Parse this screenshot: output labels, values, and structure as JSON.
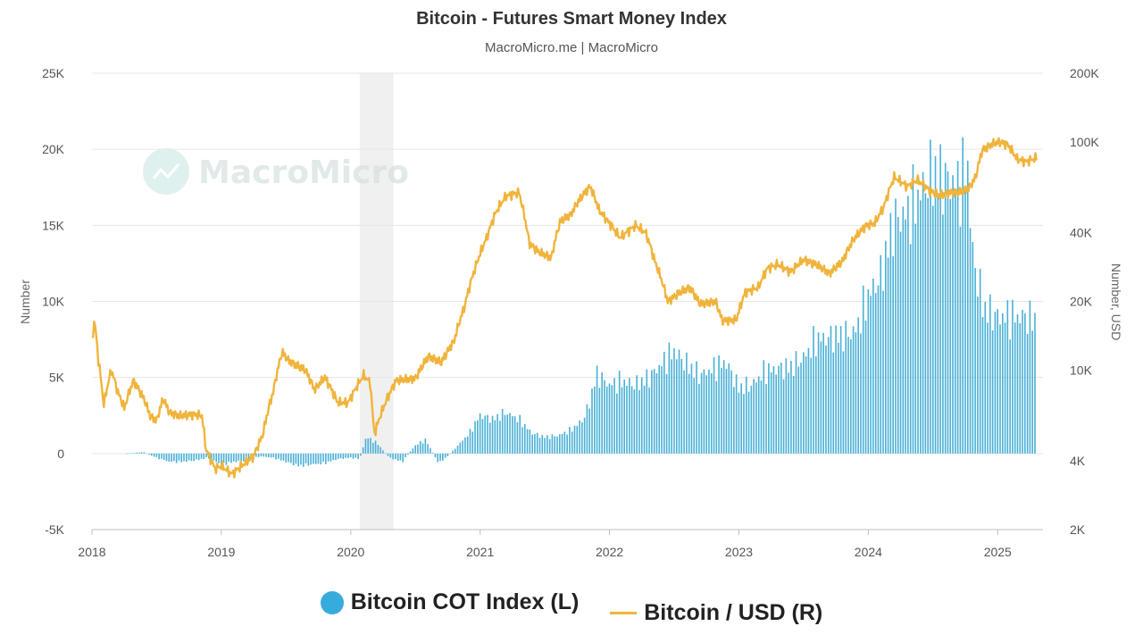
{
  "chart_data": {
    "type": "bar+line",
    "title": "Bitcoin - Futures Smart Money Index",
    "subtitle": "MacroMicro.me | MacroMicro",
    "watermark": "MacroMicro",
    "y_left": {
      "label": "Number",
      "ticks": [
        "-5K",
        "0",
        "5K",
        "10K",
        "15K",
        "20K",
        "25K"
      ],
      "min": -5000,
      "max": 25000
    },
    "y_right": {
      "label": "Number, USD",
      "ticks": [
        "2K",
        "4K",
        "10K",
        "20K",
        "40K",
        "100K",
        "200K"
      ],
      "tick_values": [
        2000,
        4000,
        10000,
        20000,
        40000,
        100000,
        200000
      ],
      "min": 2000,
      "max": 200000,
      "scale": "log"
    },
    "x_ticks": [
      "2018",
      "2019",
      "2020",
      "2021",
      "2022",
      "2023",
      "2024",
      "2025"
    ],
    "x_range": [
      2018.0,
      2025.35
    ],
    "shaded_region": [
      2020.07,
      2020.33
    ],
    "series": [
      {
        "name": "Bitcoin COT Index (L)",
        "type": "bar",
        "color": "#4ab0d6",
        "points": [
          [
            2018.27,
            0
          ],
          [
            2018.4,
            100
          ],
          [
            2018.5,
            -300
          ],
          [
            2018.6,
            -600
          ],
          [
            2018.7,
            -600
          ],
          [
            2018.8,
            -500
          ],
          [
            2018.9,
            -300
          ],
          [
            2019.0,
            -800
          ],
          [
            2019.1,
            -600
          ],
          [
            2019.2,
            -500
          ],
          [
            2019.3,
            -200
          ],
          [
            2019.4,
            -300
          ],
          [
            2019.5,
            -600
          ],
          [
            2019.6,
            -900
          ],
          [
            2019.7,
            -800
          ],
          [
            2019.8,
            -700
          ],
          [
            2019.9,
            -400
          ],
          [
            2020.0,
            -300
          ],
          [
            2020.07,
            -400
          ],
          [
            2020.12,
            1200
          ],
          [
            2020.2,
            800
          ],
          [
            2020.3,
            -300
          ],
          [
            2020.4,
            -600
          ],
          [
            2020.5,
            600
          ],
          [
            2020.58,
            1000
          ],
          [
            2020.68,
            -700
          ],
          [
            2020.75,
            -200
          ],
          [
            2020.85,
            800
          ],
          [
            2020.92,
            1500
          ],
          [
            2021.0,
            2800
          ],
          [
            2021.1,
            2500
          ],
          [
            2021.2,
            3000
          ],
          [
            2021.3,
            2500
          ],
          [
            2021.4,
            1500
          ],
          [
            2021.5,
            1200
          ],
          [
            2021.6,
            1300
          ],
          [
            2021.7,
            1700
          ],
          [
            2021.8,
            2500
          ],
          [
            2021.85,
            3800
          ],
          [
            2021.9,
            5800
          ],
          [
            2022.0,
            5000
          ],
          [
            2022.1,
            5300
          ],
          [
            2022.2,
            5000
          ],
          [
            2022.3,
            5500
          ],
          [
            2022.4,
            6500
          ],
          [
            2022.5,
            7500
          ],
          [
            2022.6,
            6500
          ],
          [
            2022.7,
            5700
          ],
          [
            2022.8,
            6200
          ],
          [
            2022.9,
            6700
          ],
          [
            2023.0,
            4800
          ],
          [
            2023.1,
            5000
          ],
          [
            2023.2,
            6000
          ],
          [
            2023.3,
            6200
          ],
          [
            2023.4,
            6300
          ],
          [
            2023.5,
            7000
          ],
          [
            2023.6,
            8300
          ],
          [
            2023.7,
            8500
          ],
          [
            2023.8,
            8600
          ],
          [
            2023.9,
            8900
          ],
          [
            2024.0,
            11500
          ],
          [
            2024.1,
            13000
          ],
          [
            2024.2,
            17000
          ],
          [
            2024.3,
            17500
          ],
          [
            2024.4,
            19000
          ],
          [
            2024.5,
            20500
          ],
          [
            2024.6,
            20000
          ],
          [
            2024.7,
            19500
          ],
          [
            2024.77,
            21000
          ],
          [
            2024.8,
            15000
          ],
          [
            2024.85,
            12500
          ],
          [
            2024.9,
            10500
          ],
          [
            2025.0,
            10000
          ],
          [
            2025.1,
            10000
          ],
          [
            2025.2,
            10000
          ],
          [
            2025.3,
            9700
          ]
        ]
      },
      {
        "name": "Bitcoin / USD (R)",
        "type": "line",
        "color": "#f0b43c",
        "points": [
          [
            2018.0,
            13500
          ],
          [
            2018.02,
            16500
          ],
          [
            2018.05,
            11000
          ],
          [
            2018.09,
            7000
          ],
          [
            2018.15,
            10000
          ],
          [
            2018.2,
            8000
          ],
          [
            2018.25,
            6800
          ],
          [
            2018.32,
            9000
          ],
          [
            2018.4,
            7500
          ],
          [
            2018.45,
            6300
          ],
          [
            2018.5,
            6000
          ],
          [
            2018.55,
            7500
          ],
          [
            2018.6,
            6500
          ],
          [
            2018.68,
            6300
          ],
          [
            2018.8,
            6400
          ],
          [
            2018.85,
            6300
          ],
          [
            2018.88,
            4500
          ],
          [
            2018.95,
            3700
          ],
          [
            2019.0,
            3800
          ],
          [
            2019.08,
            3500
          ],
          [
            2019.18,
            3900
          ],
          [
            2019.25,
            4200
          ],
          [
            2019.32,
            5200
          ],
          [
            2019.4,
            8000
          ],
          [
            2019.47,
            12000
          ],
          [
            2019.52,
            11000
          ],
          [
            2019.58,
            10500
          ],
          [
            2019.65,
            10000
          ],
          [
            2019.72,
            8200
          ],
          [
            2019.8,
            9300
          ],
          [
            2019.9,
            7200
          ],
          [
            2019.98,
            7200
          ],
          [
            2020.1,
            9500
          ],
          [
            2020.15,
            8800
          ],
          [
            2020.18,
            5200
          ],
          [
            2020.25,
            6800
          ],
          [
            2020.35,
            9000
          ],
          [
            2020.5,
            9200
          ],
          [
            2020.6,
            11500
          ],
          [
            2020.7,
            10800
          ],
          [
            2020.8,
            13500
          ],
          [
            2020.88,
            19000
          ],
          [
            2020.97,
            29000
          ],
          [
            2021.05,
            38000
          ],
          [
            2021.12,
            49000
          ],
          [
            2021.2,
            58000
          ],
          [
            2021.3,
            60000
          ],
          [
            2021.38,
            36000
          ],
          [
            2021.45,
            33000
          ],
          [
            2021.55,
            31000
          ],
          [
            2021.62,
            45000
          ],
          [
            2021.7,
            48000
          ],
          [
            2021.76,
            55000
          ],
          [
            2021.85,
            64000
          ],
          [
            2021.92,
            50000
          ],
          [
            2022.0,
            44000
          ],
          [
            2022.08,
            38000
          ],
          [
            2022.2,
            43000
          ],
          [
            2022.28,
            40000
          ],
          [
            2022.35,
            30000
          ],
          [
            2022.45,
            20000
          ],
          [
            2022.55,
            22000
          ],
          [
            2022.62,
            23000
          ],
          [
            2022.7,
            19500
          ],
          [
            2022.82,
            20000
          ],
          [
            2022.87,
            16500
          ],
          [
            2022.98,
            16600
          ],
          [
            2023.05,
            22000
          ],
          [
            2023.15,
            23000
          ],
          [
            2023.22,
            28000
          ],
          [
            2023.3,
            29000
          ],
          [
            2023.4,
            27000
          ],
          [
            2023.5,
            30500
          ],
          [
            2023.6,
            29000
          ],
          [
            2023.7,
            26500
          ],
          [
            2023.8,
            30000
          ],
          [
            2023.88,
            37000
          ],
          [
            2023.98,
            43000
          ],
          [
            2024.05,
            44000
          ],
          [
            2024.12,
            52000
          ],
          [
            2024.2,
            70000
          ],
          [
            2024.3,
            64000
          ],
          [
            2024.38,
            68000
          ],
          [
            2024.48,
            61000
          ],
          [
            2024.55,
            58000
          ],
          [
            2024.62,
            60000
          ],
          [
            2024.7,
            60000
          ],
          [
            2024.78,
            63000
          ],
          [
            2024.83,
            70000
          ],
          [
            2024.88,
            92000
          ],
          [
            2024.96,
            98000
          ],
          [
            2025.02,
            100000
          ],
          [
            2025.08,
            97000
          ],
          [
            2025.15,
            84000
          ],
          [
            2025.22,
            82000
          ],
          [
            2025.3,
            85000
          ]
        ]
      }
    ]
  },
  "legend": {
    "items": [
      {
        "label": "Bitcoin COT Index (L)",
        "color": "#36abdc"
      },
      {
        "label": "Bitcoin / USD (R)",
        "color": "#f0b43c"
      }
    ]
  }
}
